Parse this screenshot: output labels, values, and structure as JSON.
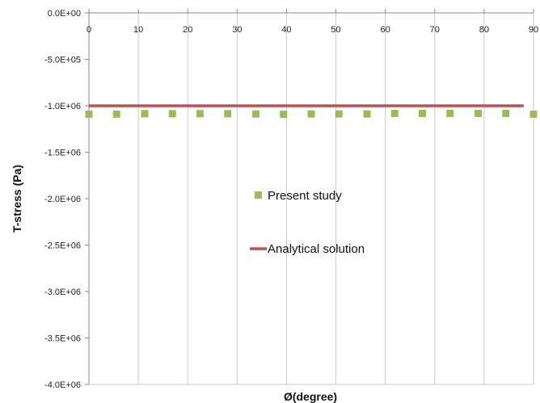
{
  "chart_data": {
    "type": "scatter",
    "xlabel": "Ø(degree)",
    "ylabel": "T-stress (Pa)",
    "xlim": [
      0,
      90
    ],
    "ylim": [
      -4000000,
      0
    ],
    "x_ticks": [
      0,
      10,
      20,
      30,
      40,
      50,
      60,
      70,
      80,
      90
    ],
    "x_tick_labels": [
      "0",
      "10",
      "20",
      "30",
      "40",
      "50",
      "60",
      "70",
      "80",
      "90"
    ],
    "y_ticks": [
      0,
      -500000,
      -1000000,
      -1500000,
      -2000000,
      -2500000,
      -3000000,
      -3500000,
      -4000000
    ],
    "y_tick_labels": [
      "0.0E+00",
      "-5.0E+05",
      "-1.0E+06",
      "-1.5E+06",
      "-2.0E+06",
      "-2.5E+06",
      "-3.0E+06",
      "-3.5E+06",
      "-4.0E+06"
    ],
    "x_axis_position": "top",
    "grid": "vertical",
    "legend": "center",
    "series": [
      {
        "name": "Present study",
        "kind": "markers",
        "marker": "square",
        "color": "#9bbb59",
        "x": [
          0,
          5.6,
          11.3,
          16.9,
          22.5,
          28.1,
          33.8,
          39.4,
          45,
          50.6,
          56.3,
          61.9,
          67.5,
          73.1,
          78.8,
          84.4,
          90
        ],
        "y": [
          -1090000,
          -1090000,
          -1085000,
          -1085000,
          -1085000,
          -1085000,
          -1088000,
          -1092000,
          -1088000,
          -1088000,
          -1088000,
          -1082000,
          -1082000,
          -1082000,
          -1082000,
          -1082000,
          -1090000
        ]
      },
      {
        "name": "Analytical solution",
        "kind": "line",
        "color": "#c0504d",
        "x": [
          0,
          88
        ],
        "y": [
          -1000000,
          -1000000
        ]
      }
    ]
  }
}
